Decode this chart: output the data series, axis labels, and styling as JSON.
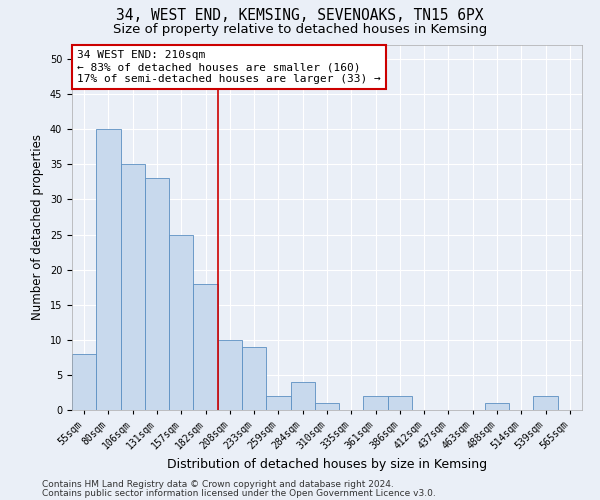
{
  "title": "34, WEST END, KEMSING, SEVENOAKS, TN15 6PX",
  "subtitle": "Size of property relative to detached houses in Kemsing",
  "xlabel": "Distribution of detached houses by size in Kemsing",
  "ylabel": "Number of detached properties",
  "bin_labels": [
    "55sqm",
    "80sqm",
    "106sqm",
    "131sqm",
    "157sqm",
    "182sqm",
    "208sqm",
    "233sqm",
    "259sqm",
    "284sqm",
    "310sqm",
    "335sqm",
    "361sqm",
    "386sqm",
    "412sqm",
    "437sqm",
    "463sqm",
    "488sqm",
    "514sqm",
    "539sqm",
    "565sqm"
  ],
  "bar_values": [
    8,
    40,
    35,
    33,
    25,
    18,
    10,
    9,
    2,
    4,
    1,
    0,
    2,
    2,
    0,
    0,
    0,
    1,
    0,
    2,
    0
  ],
  "bar_color": "#c8d9ed",
  "bar_edgecolor": "#5b8fc2",
  "vline_index": 6,
  "vline_color": "#cc0000",
  "annotation_line1": "34 WEST END: 210sqm",
  "annotation_line2": "← 83% of detached houses are smaller (160)",
  "annotation_line3": "17% of semi-detached houses are larger (33) →",
  "annotation_box_edgecolor": "#cc0000",
  "ylim": [
    0,
    52
  ],
  "yticks": [
    0,
    5,
    10,
    15,
    20,
    25,
    30,
    35,
    40,
    45,
    50
  ],
  "footer_line1": "Contains HM Land Registry data © Crown copyright and database right 2024.",
  "footer_line2": "Contains public sector information licensed under the Open Government Licence v3.0.",
  "bg_color": "#eaeff7",
  "plot_bg_color": "#eaeff7",
  "grid_color": "#ffffff",
  "title_fontsize": 10.5,
  "subtitle_fontsize": 9.5,
  "label_fontsize": 8.5,
  "tick_fontsize": 7,
  "footer_fontsize": 6.5,
  "annot_fontsize": 8
}
